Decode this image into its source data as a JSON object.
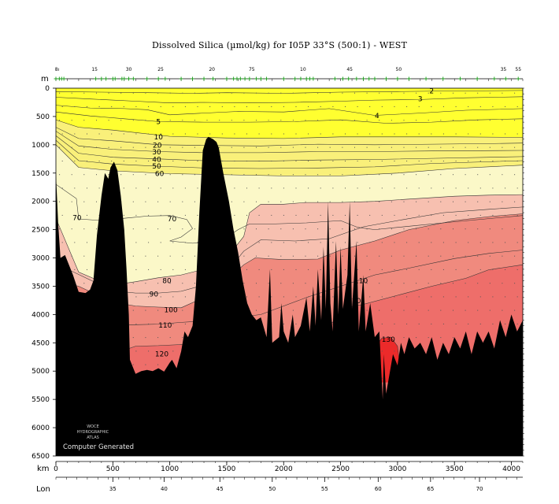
{
  "title": "Dissolved Silica (µmol/kg) for I05P 33°S (500:1) - WEST",
  "chart_data": {
    "type": "section-contour",
    "title": "Dissolved Silica (µmol/kg) for I05P 33°S (500:1) - WEST",
    "y_axis": {
      "label": "m",
      "range": [
        0,
        6500
      ],
      "ticks": [
        0,
        500,
        1000,
        1500,
        2000,
        2500,
        3000,
        3500,
        4000,
        4500,
        5000,
        5500,
        6000,
        6500
      ]
    },
    "x_axis": {
      "label": "km",
      "range": [
        0,
        4100
      ],
      "ticks": [
        0,
        500,
        1000,
        1500,
        2000,
        2500,
        3000,
        3500,
        4000
      ]
    },
    "lon_axis": {
      "label": "Lon",
      "ticks": [
        35,
        40,
        45,
        50,
        55,
        60,
        65,
        70
      ],
      "tick_km": [
        500,
        950,
        1440,
        1900,
        2360,
        2830,
        3290,
        3720
      ]
    },
    "station_numbers": [
      {
        "label": "8ı",
        "km": 10
      },
      {
        "label": "15",
        "km": 340
      },
      {
        "label": "30",
        "km": 640
      },
      {
        "label": "25",
        "km": 920
      },
      {
        "label": "20",
        "km": 1370
      },
      {
        "label": "75",
        "km": 1720
      },
      {
        "label": "10",
        "km": 2170
      },
      {
        "label": "45",
        "km": 2580
      },
      {
        "label": "50",
        "km": 3010
      },
      {
        "label": "35",
        "km": 3930
      },
      {
        "label": "55",
        "km": 4060
      }
    ],
    "contour_labels": [
      {
        "text": "2",
        "km": 3300,
        "depth": 50
      },
      {
        "text": "3",
        "km": 3200,
        "depth": 190
      },
      {
        "text": "4",
        "km": 2820,
        "depth": 490
      },
      {
        "text": "5",
        "km": 900,
        "depth": 590
      },
      {
        "text": "10",
        "km": 900,
        "depth": 860
      },
      {
        "text": "20",
        "km": 890,
        "depth": 1010
      },
      {
        "text": "30",
        "km": 885,
        "depth": 1130
      },
      {
        "text": "40",
        "km": 885,
        "depth": 1260
      },
      {
        "text": "50",
        "km": 885,
        "depth": 1380
      },
      {
        "text": "60",
        "km": 910,
        "depth": 1510
      },
      {
        "text": "70",
        "km": 185,
        "depth": 2290
      },
      {
        "text": "70",
        "km": 1020,
        "depth": 2310
      },
      {
        "text": "80",
        "km": 975,
        "depth": 3400
      },
      {
        "text": "90",
        "km": 860,
        "depth": 3640
      },
      {
        "text": "100",
        "km": 1010,
        "depth": 3920
      },
      {
        "text": "110",
        "km": 960,
        "depth": 4190
      },
      {
        "text": "110",
        "km": 2680,
        "depth": 3400
      },
      {
        "text": "120",
        "km": 930,
        "depth": 4700
      },
      {
        "text": "120",
        "km": 2620,
        "depth": 3760
      },
      {
        "text": "130",
        "km": 2920,
        "depth": 4440
      }
    ],
    "fill_colors": {
      "lt10": "#ffff30",
      "b10_60": "#f9f07a",
      "b60_80": "#fbf8c8",
      "b80_100": "#f7c0b0",
      "b100_120": "#f08a7e",
      "b120_130": "#ee6e6a",
      "gt130": "#ec2a2a",
      "bathymetry": "#000000"
    },
    "watermark": [
      "WOCE",
      "HYDROGRAPHIC",
      "ATLAS"
    ],
    "watermark_caption": "Computer Generated"
  }
}
